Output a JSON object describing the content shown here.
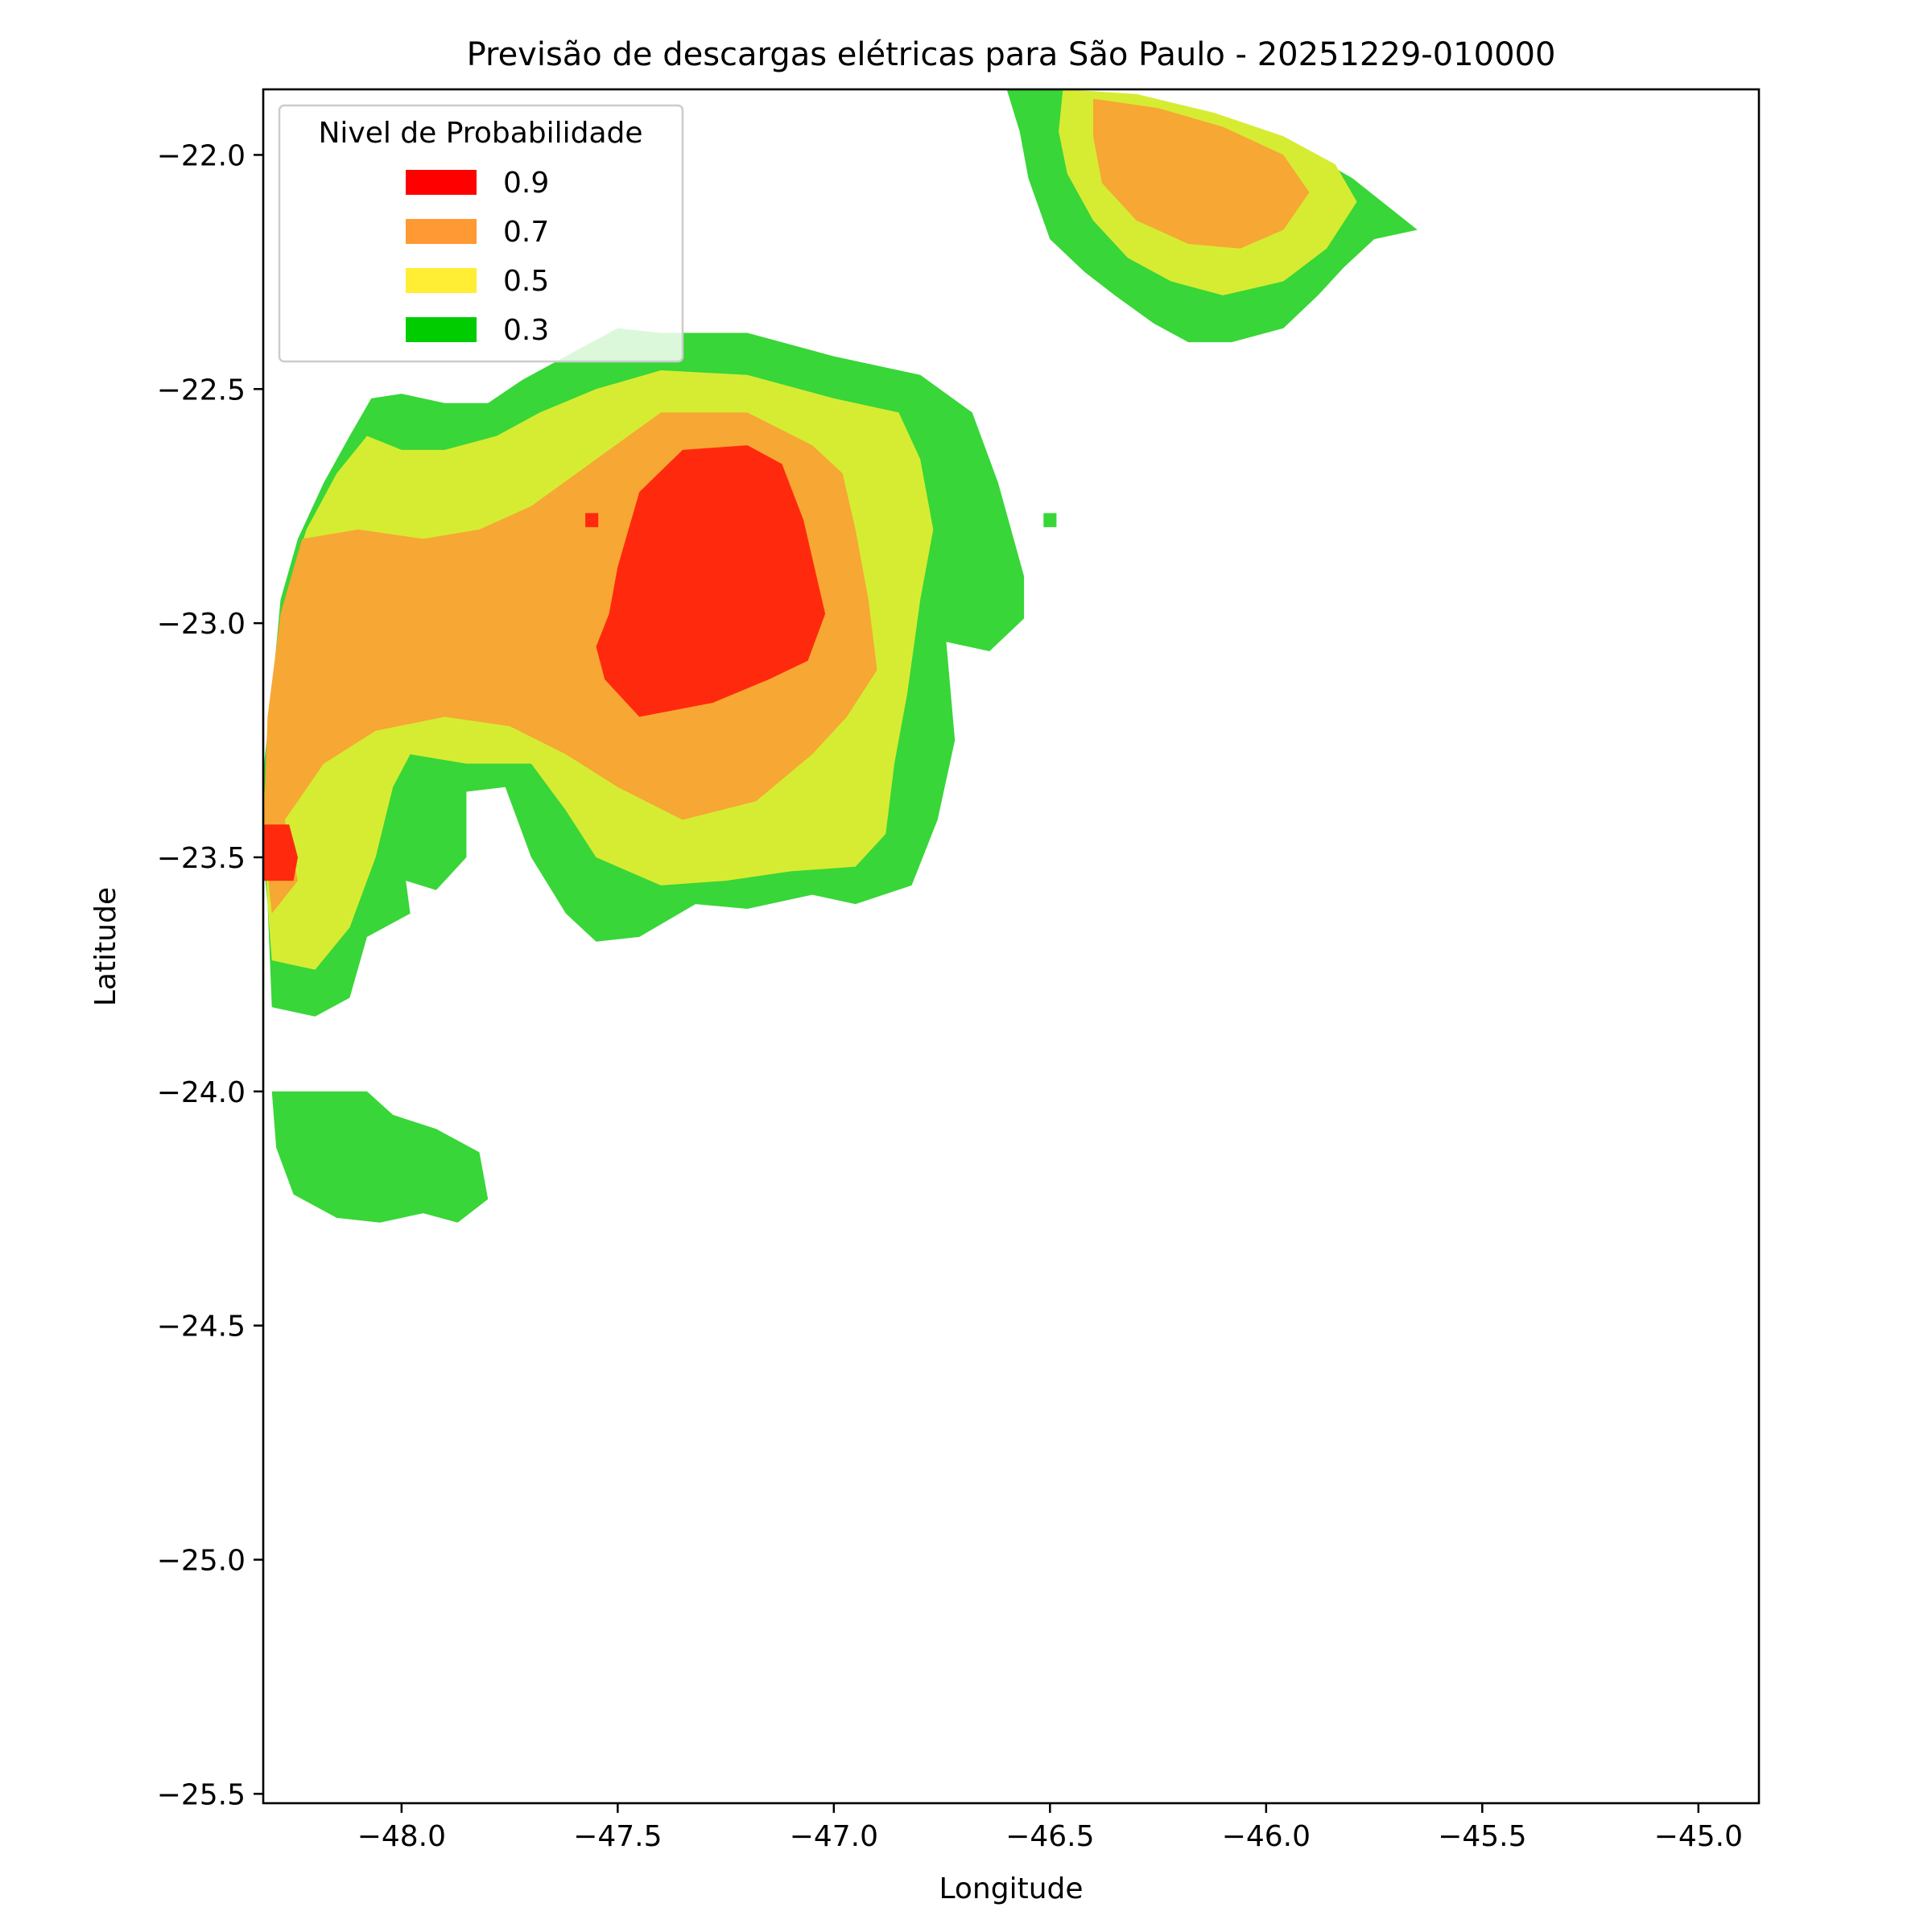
{
  "chart_data": {
    "type": "heatmap",
    "title": "Previsão de descargas elétricas para São Paulo - 20251229-010000",
    "xlabel": "Longitude",
    "ylabel": "Latitude",
    "xlim": [
      -48.32,
      -44.86
    ],
    "ylim": [
      -25.52,
      -21.86
    ],
    "xticks": [
      -48.0,
      -47.5,
      -47.0,
      -46.5,
      -46.0,
      -45.5,
      -45.0
    ],
    "xtick_labels": [
      "−48.0",
      "−47.5",
      "−47.0",
      "−46.5",
      "−46.0",
      "−45.5",
      "−45.0"
    ],
    "yticks": [
      -22.0,
      -22.5,
      -23.0,
      -23.5,
      -24.0,
      -24.5,
      -25.0,
      -25.5
    ],
    "ytick_labels": [
      "−22.0",
      "−22.5",
      "−23.0",
      "−23.5",
      "−24.0",
      "−24.5",
      "−25.0",
      "−25.5"
    ],
    "grid": false,
    "legend": {
      "title": "Nivel de Probabilidade",
      "placement": "upper-left",
      "entries": [
        {
          "label": "0.9",
          "color": "#ff0000"
        },
        {
          "label": "0.7",
          "color": "#ff9933"
        },
        {
          "label": "0.5",
          "color": "#ffee33"
        },
        {
          "label": "0.3",
          "color": "#00cc00"
        }
      ]
    },
    "level_fill_colors": {
      "0.9": "#ff2a0e",
      "0.7": "#f7a733",
      "0.5": "#d6ec33",
      "0.3": "#38d638"
    },
    "regions": [
      {
        "name": "west-cluster",
        "level": 0.3,
        "polygon": [
          [
            -48.33,
            -23.4
          ],
          [
            -48.3,
            -23.15
          ],
          [
            -48.28,
            -22.95
          ],
          [
            -48.24,
            -22.82
          ],
          [
            -48.18,
            -22.7
          ],
          [
            -48.12,
            -22.6
          ],
          [
            -48.07,
            -22.52
          ],
          [
            -48.0,
            -22.51
          ],
          [
            -47.9,
            -22.53
          ],
          [
            -47.8,
            -22.53
          ],
          [
            -47.72,
            -22.48
          ],
          [
            -47.6,
            -22.42
          ],
          [
            -47.5,
            -22.37
          ],
          [
            -47.4,
            -22.38
          ],
          [
            -47.2,
            -22.38
          ],
          [
            -47.0,
            -22.43
          ],
          [
            -46.8,
            -22.47
          ],
          [
            -46.68,
            -22.55
          ],
          [
            -46.62,
            -22.7
          ],
          [
            -46.56,
            -22.9
          ],
          [
            -46.56,
            -22.99
          ],
          [
            -46.64,
            -23.06
          ],
          [
            -46.74,
            -23.04
          ],
          [
            -46.72,
            -23.25
          ],
          [
            -46.76,
            -23.42
          ],
          [
            -46.82,
            -23.56
          ],
          [
            -46.95,
            -23.6
          ],
          [
            -47.05,
            -23.58
          ],
          [
            -47.2,
            -23.61
          ],
          [
            -47.32,
            -23.6
          ],
          [
            -47.45,
            -23.67
          ],
          [
            -47.55,
            -23.68
          ],
          [
            -47.62,
            -23.62
          ],
          [
            -47.7,
            -23.5
          ],
          [
            -47.76,
            -23.35
          ],
          [
            -47.85,
            -23.36
          ],
          [
            -47.85,
            -23.5
          ],
          [
            -47.92,
            -23.57
          ],
          [
            -47.99,
            -23.55
          ],
          [
            -47.98,
            -23.62
          ],
          [
            -48.08,
            -23.67
          ],
          [
            -48.12,
            -23.8
          ],
          [
            -48.2,
            -23.84
          ],
          [
            -48.3,
            -23.82
          ],
          [
            -48.31,
            -23.6
          ]
        ]
      },
      {
        "name": "west-cluster",
        "level": 0.5,
        "polygon": [
          [
            -48.32,
            -23.4
          ],
          [
            -48.3,
            -23.15
          ],
          [
            -48.27,
            -22.95
          ],
          [
            -48.22,
            -22.8
          ],
          [
            -48.15,
            -22.68
          ],
          [
            -48.08,
            -22.6
          ],
          [
            -48.0,
            -22.63
          ],
          [
            -47.9,
            -22.63
          ],
          [
            -47.78,
            -22.6
          ],
          [
            -47.68,
            -22.55
          ],
          [
            -47.55,
            -22.5
          ],
          [
            -47.4,
            -22.46
          ],
          [
            -47.2,
            -22.47
          ],
          [
            -47.0,
            -22.52
          ],
          [
            -46.85,
            -22.55
          ],
          [
            -46.8,
            -22.65
          ],
          [
            -46.77,
            -22.8
          ],
          [
            -46.8,
            -22.95
          ],
          [
            -46.83,
            -23.15
          ],
          [
            -46.86,
            -23.3
          ],
          [
            -46.88,
            -23.45
          ],
          [
            -46.95,
            -23.52
          ],
          [
            -47.1,
            -23.53
          ],
          [
            -47.25,
            -23.55
          ],
          [
            -47.4,
            -23.56
          ],
          [
            -47.55,
            -23.5
          ],
          [
            -47.62,
            -23.4
          ],
          [
            -47.7,
            -23.3
          ],
          [
            -47.85,
            -23.3
          ],
          [
            -47.98,
            -23.28
          ],
          [
            -48.02,
            -23.35
          ],
          [
            -48.06,
            -23.5
          ],
          [
            -48.12,
            -23.65
          ],
          [
            -48.2,
            -23.74
          ],
          [
            -48.3,
            -23.72
          ],
          [
            -48.31,
            -23.6
          ]
        ]
      },
      {
        "name": "west-cluster",
        "level": 0.7,
        "polygon": [
          [
            -48.32,
            -23.45
          ],
          [
            -48.31,
            -23.2
          ],
          [
            -48.28,
            -22.98
          ],
          [
            -48.23,
            -22.82
          ],
          [
            -48.1,
            -22.8
          ],
          [
            -47.95,
            -22.82
          ],
          [
            -47.82,
            -22.8
          ],
          [
            -47.7,
            -22.75
          ],
          [
            -47.55,
            -22.65
          ],
          [
            -47.4,
            -22.55
          ],
          [
            -47.2,
            -22.55
          ],
          [
            -47.05,
            -22.62
          ],
          [
            -46.98,
            -22.68
          ],
          [
            -46.95,
            -22.8
          ],
          [
            -46.92,
            -22.95
          ],
          [
            -46.9,
            -23.1
          ],
          [
            -46.97,
            -23.2
          ],
          [
            -47.05,
            -23.28
          ],
          [
            -47.18,
            -23.38
          ],
          [
            -47.35,
            -23.42
          ],
          [
            -47.5,
            -23.35
          ],
          [
            -47.62,
            -23.28
          ],
          [
            -47.75,
            -23.22
          ],
          [
            -47.9,
            -23.2
          ],
          [
            -48.06,
            -23.23
          ],
          [
            -48.18,
            -23.3
          ],
          [
            -48.27,
            -23.42
          ],
          [
            -48.24,
            -23.55
          ],
          [
            -48.3,
            -23.62
          ]
        ]
      },
      {
        "name": "west-cluster",
        "level": 0.9,
        "polygon": [
          [
            -47.5,
            -22.88
          ],
          [
            -47.45,
            -22.72
          ],
          [
            -47.35,
            -22.63
          ],
          [
            -47.2,
            -22.62
          ],
          [
            -47.12,
            -22.66
          ],
          [
            -47.07,
            -22.78
          ],
          [
            -47.02,
            -22.98
          ],
          [
            -47.06,
            -23.08
          ],
          [
            -47.15,
            -23.12
          ],
          [
            -47.28,
            -23.17
          ],
          [
            -47.45,
            -23.2
          ],
          [
            -47.53,
            -23.12
          ],
          [
            -47.55,
            -23.05
          ],
          [
            -47.52,
            -22.98
          ]
        ]
      },
      {
        "name": "west-edge-cell",
        "level": 0.9,
        "polygon": [
          [
            -48.32,
            -23.43
          ],
          [
            -48.26,
            -23.43
          ],
          [
            -48.24,
            -23.5
          ],
          [
            -48.25,
            -23.55
          ],
          [
            -48.32,
            -23.55
          ]
        ]
      },
      {
        "name": "northeast-cluster",
        "level": 0.3,
        "polygon": [
          [
            -46.6,
            -21.86
          ],
          [
            -46.47,
            -21.86
          ],
          [
            -46.3,
            -21.88
          ],
          [
            -46.12,
            -21.92
          ],
          [
            -45.95,
            -21.97
          ],
          [
            -45.8,
            -22.05
          ],
          [
            -45.65,
            -22.16
          ],
          [
            -45.75,
            -22.18
          ],
          [
            -45.82,
            -22.24
          ],
          [
            -45.88,
            -22.3
          ],
          [
            -45.96,
            -22.37
          ],
          [
            -46.08,
            -22.4
          ],
          [
            -46.18,
            -22.4
          ],
          [
            -46.26,
            -22.36
          ],
          [
            -46.35,
            -22.3
          ],
          [
            -46.42,
            -22.25
          ],
          [
            -46.5,
            -22.18
          ],
          [
            -46.55,
            -22.05
          ],
          [
            -46.57,
            -21.95
          ]
        ]
      },
      {
        "name": "northeast-cluster",
        "level": 0.5,
        "polygon": [
          [
            -46.47,
            -21.86
          ],
          [
            -46.3,
            -21.87
          ],
          [
            -46.12,
            -21.91
          ],
          [
            -45.96,
            -21.96
          ],
          [
            -45.84,
            -22.02
          ],
          [
            -45.79,
            -22.1
          ],
          [
            -45.86,
            -22.2
          ],
          [
            -45.96,
            -22.27
          ],
          [
            -46.1,
            -22.3
          ],
          [
            -46.22,
            -22.27
          ],
          [
            -46.32,
            -22.22
          ],
          [
            -46.4,
            -22.14
          ],
          [
            -46.46,
            -22.04
          ],
          [
            -46.48,
            -21.95
          ]
        ]
      },
      {
        "name": "northeast-cluster",
        "level": 0.7,
        "polygon": [
          [
            -46.4,
            -21.88
          ],
          [
            -46.25,
            -21.9
          ],
          [
            -46.1,
            -21.94
          ],
          [
            -45.96,
            -22.0
          ],
          [
            -45.9,
            -22.08
          ],
          [
            -45.96,
            -22.16
          ],
          [
            -46.06,
            -22.2
          ],
          [
            -46.18,
            -22.19
          ],
          [
            -46.3,
            -22.14
          ],
          [
            -46.38,
            -22.06
          ],
          [
            -46.4,
            -21.96
          ]
        ]
      },
      {
        "name": "south-cluster",
        "level": 0.3,
        "polygon": [
          [
            -48.3,
            -24.0
          ],
          [
            -48.08,
            -24.0
          ],
          [
            -48.02,
            -24.05
          ],
          [
            -47.92,
            -24.08
          ],
          [
            -47.82,
            -24.13
          ],
          [
            -47.8,
            -24.23
          ],
          [
            -47.87,
            -24.28
          ],
          [
            -47.95,
            -24.26
          ],
          [
            -48.05,
            -24.28
          ],
          [
            -48.15,
            -24.27
          ],
          [
            -48.25,
            -24.22
          ],
          [
            -48.29,
            -24.12
          ]
        ]
      },
      {
        "name": "isolated-dot",
        "level": 0.9,
        "polygon": [
          [
            -47.575,
            -22.765
          ],
          [
            -47.545,
            -22.765
          ],
          [
            -47.545,
            -22.795
          ],
          [
            -47.575,
            -22.795
          ]
        ]
      },
      {
        "name": "isolated-dot",
        "level": 0.3,
        "polygon": [
          [
            -46.515,
            -22.765
          ],
          [
            -46.485,
            -22.765
          ],
          [
            -46.485,
            -22.795
          ],
          [
            -46.515,
            -22.795
          ]
        ]
      }
    ]
  }
}
